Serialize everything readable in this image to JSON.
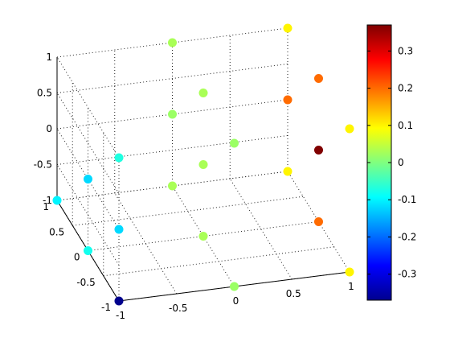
{
  "chart_data": {
    "type": "scatter",
    "title": "",
    "xlabel": "",
    "ylabel": "",
    "zlabel": "",
    "xlim": [
      -1,
      1
    ],
    "ylim": [
      -1,
      1
    ],
    "zlim": [
      -1,
      1
    ],
    "grid": true,
    "x_ticks": [
      "-1",
      "-0.5",
      "0",
      "0.5",
      "1"
    ],
    "y_ticks": [
      "-1",
      "-0.5",
      "0",
      "0.5",
      "1"
    ],
    "z_ticks": [
      "-1",
      "-0.5",
      "0",
      "0.5",
      "1"
    ],
    "colorbar": {
      "colormap": "jet",
      "range": [
        -0.37,
        0.37
      ],
      "ticks": [
        "0.3",
        "0.2",
        "0.1",
        "0",
        "-0.1",
        "-0.2",
        "-0.3"
      ],
      "tick_values": [
        0.3,
        0.2,
        0.1,
        0,
        -0.1,
        -0.2,
        -0.3
      ],
      "placement": "right"
    },
    "points": [
      {
        "x": -1,
        "y": -1,
        "z": 1,
        "c": -0.07
      },
      {
        "x": -1,
        "y": -1,
        "z": 0,
        "c": -0.12
      },
      {
        "x": -1,
        "y": -1,
        "z": -1,
        "c": -0.36
      },
      {
        "x": -1,
        "y": 0,
        "z": 0,
        "c": -0.12
      },
      {
        "x": -1,
        "y": 0,
        "z": -1,
        "c": -0.08
      },
      {
        "x": -1,
        "y": 1,
        "z": -1,
        "c": -0.1
      },
      {
        "x": 0,
        "y": -1,
        "z": 1,
        "c": 0.02
      },
      {
        "x": 0,
        "y": -1,
        "z": -1,
        "c": 0.02
      },
      {
        "x": 0,
        "y": 0,
        "z": 1,
        "c": 0.03
      },
      {
        "x": 0,
        "y": 0,
        "z": 0,
        "c": 0.03
      },
      {
        "x": 0,
        "y": 0,
        "z": -1,
        "c": 0.03
      },
      {
        "x": 0,
        "y": 1,
        "z": 1,
        "c": 0.03
      },
      {
        "x": 0,
        "y": 1,
        "z": 0,
        "c": 0.02
      },
      {
        "x": 0,
        "y": 1,
        "z": -1,
        "c": 0.03
      },
      {
        "x": 1,
        "y": -1,
        "z": 1,
        "c": 0.1
      },
      {
        "x": 1,
        "y": -1,
        "z": -1,
        "c": 0.1
      },
      {
        "x": 1,
        "y": 0,
        "z": 1,
        "c": 0.2
      },
      {
        "x": 1,
        "y": 0,
        "z": 0,
        "c": 0.37
      },
      {
        "x": 1,
        "y": 0,
        "z": -1,
        "c": 0.2
      },
      {
        "x": 1,
        "y": 1,
        "z": 1,
        "c": 0.1
      },
      {
        "x": 1,
        "y": 1,
        "z": 0,
        "c": 0.2
      },
      {
        "x": 1,
        "y": 1,
        "z": -1,
        "c": 0.1
      }
    ]
  }
}
